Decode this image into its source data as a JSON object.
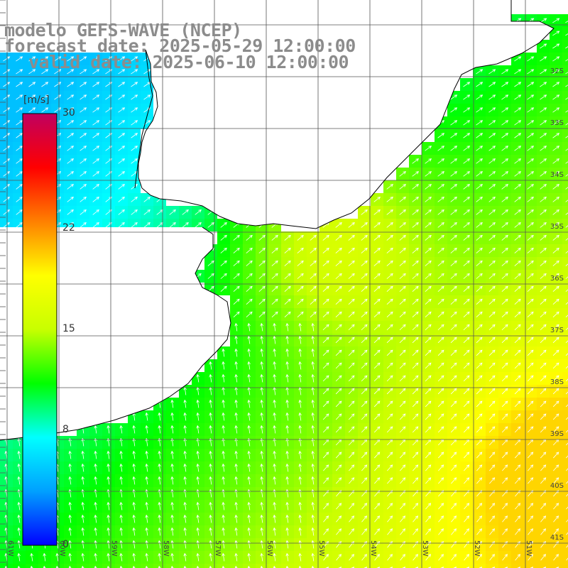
{
  "title": {
    "line1": "modelo GEFS-WAVE (NCEP)",
    "line2": "forecast date: 2025-05-29 12:00:00",
    "line3": "valid date: 2025-06-10 12:00:00"
  },
  "colorbar": {
    "unit": "[m/s]",
    "ticks": [
      {
        "label": "30",
        "value": 30
      },
      {
        "label": "22",
        "value": 22
      },
      {
        "label": "15",
        "value": 15
      },
      {
        "label": "8",
        "value": 8
      },
      {
        "label": "0",
        "value": 0
      }
    ],
    "range": [
      0,
      30
    ],
    "colors": [
      "#0000ff",
      "#00a0ff",
      "#00ffff",
      "#00ff00",
      "#c8ff00",
      "#ffff00",
      "#ff8000",
      "#ff0000",
      "#c00060"
    ]
  },
  "lat_labels": [
    "32S",
    "33S",
    "34S",
    "35S",
    "36S",
    "37S",
    "38S",
    "39S",
    "40S",
    "41S"
  ],
  "lon_labels": [
    "61W",
    "60W",
    "59W",
    "58W",
    "57W",
    "56W",
    "55W",
    "54W",
    "53W",
    "52W",
    "51W"
  ],
  "colors": {
    "land": "#ffffff",
    "coast": "#000000",
    "grid": "#555555",
    "arrow": "#ffffff"
  },
  "map_extent": {
    "lon": [
      -61.5,
      -50.5
    ],
    "lat": [
      -41.5,
      -31.0
    ]
  }
}
